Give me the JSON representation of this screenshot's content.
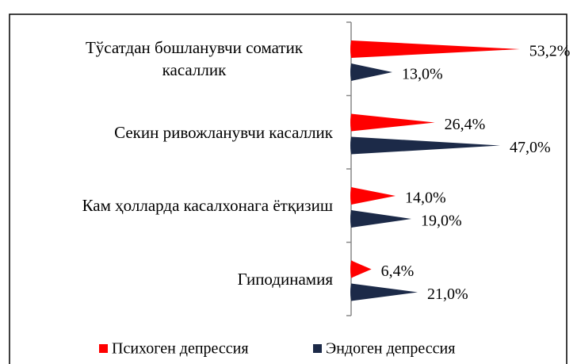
{
  "chart_data": {
    "type": "bar",
    "orientation": "horizontal",
    "shape": "cone",
    "categories": [
      "Тўсатдан бошланувчи соматик касаллик",
      "Секин ривожланувчи касаллик",
      "Кам ҳолларда касалхонага ётқизиш",
      "Гиподинамия"
    ],
    "series": [
      {
        "name": "Психоген депрессия",
        "color": "#ff0000",
        "values": [
          53.2,
          26.4,
          14.0,
          6.4
        ],
        "value_labels": [
          "53,2%",
          "26,4%",
          "14,0%",
          "6,4%"
        ]
      },
      {
        "name": "Эндоген депрессия",
        "color": "#1c2a48",
        "values": [
          13.0,
          47.0,
          19.0,
          21.0
        ],
        "value_labels": [
          "13,0%",
          "47,0%",
          "19,0%",
          "21,0%"
        ]
      }
    ],
    "legend": "bottom"
  }
}
